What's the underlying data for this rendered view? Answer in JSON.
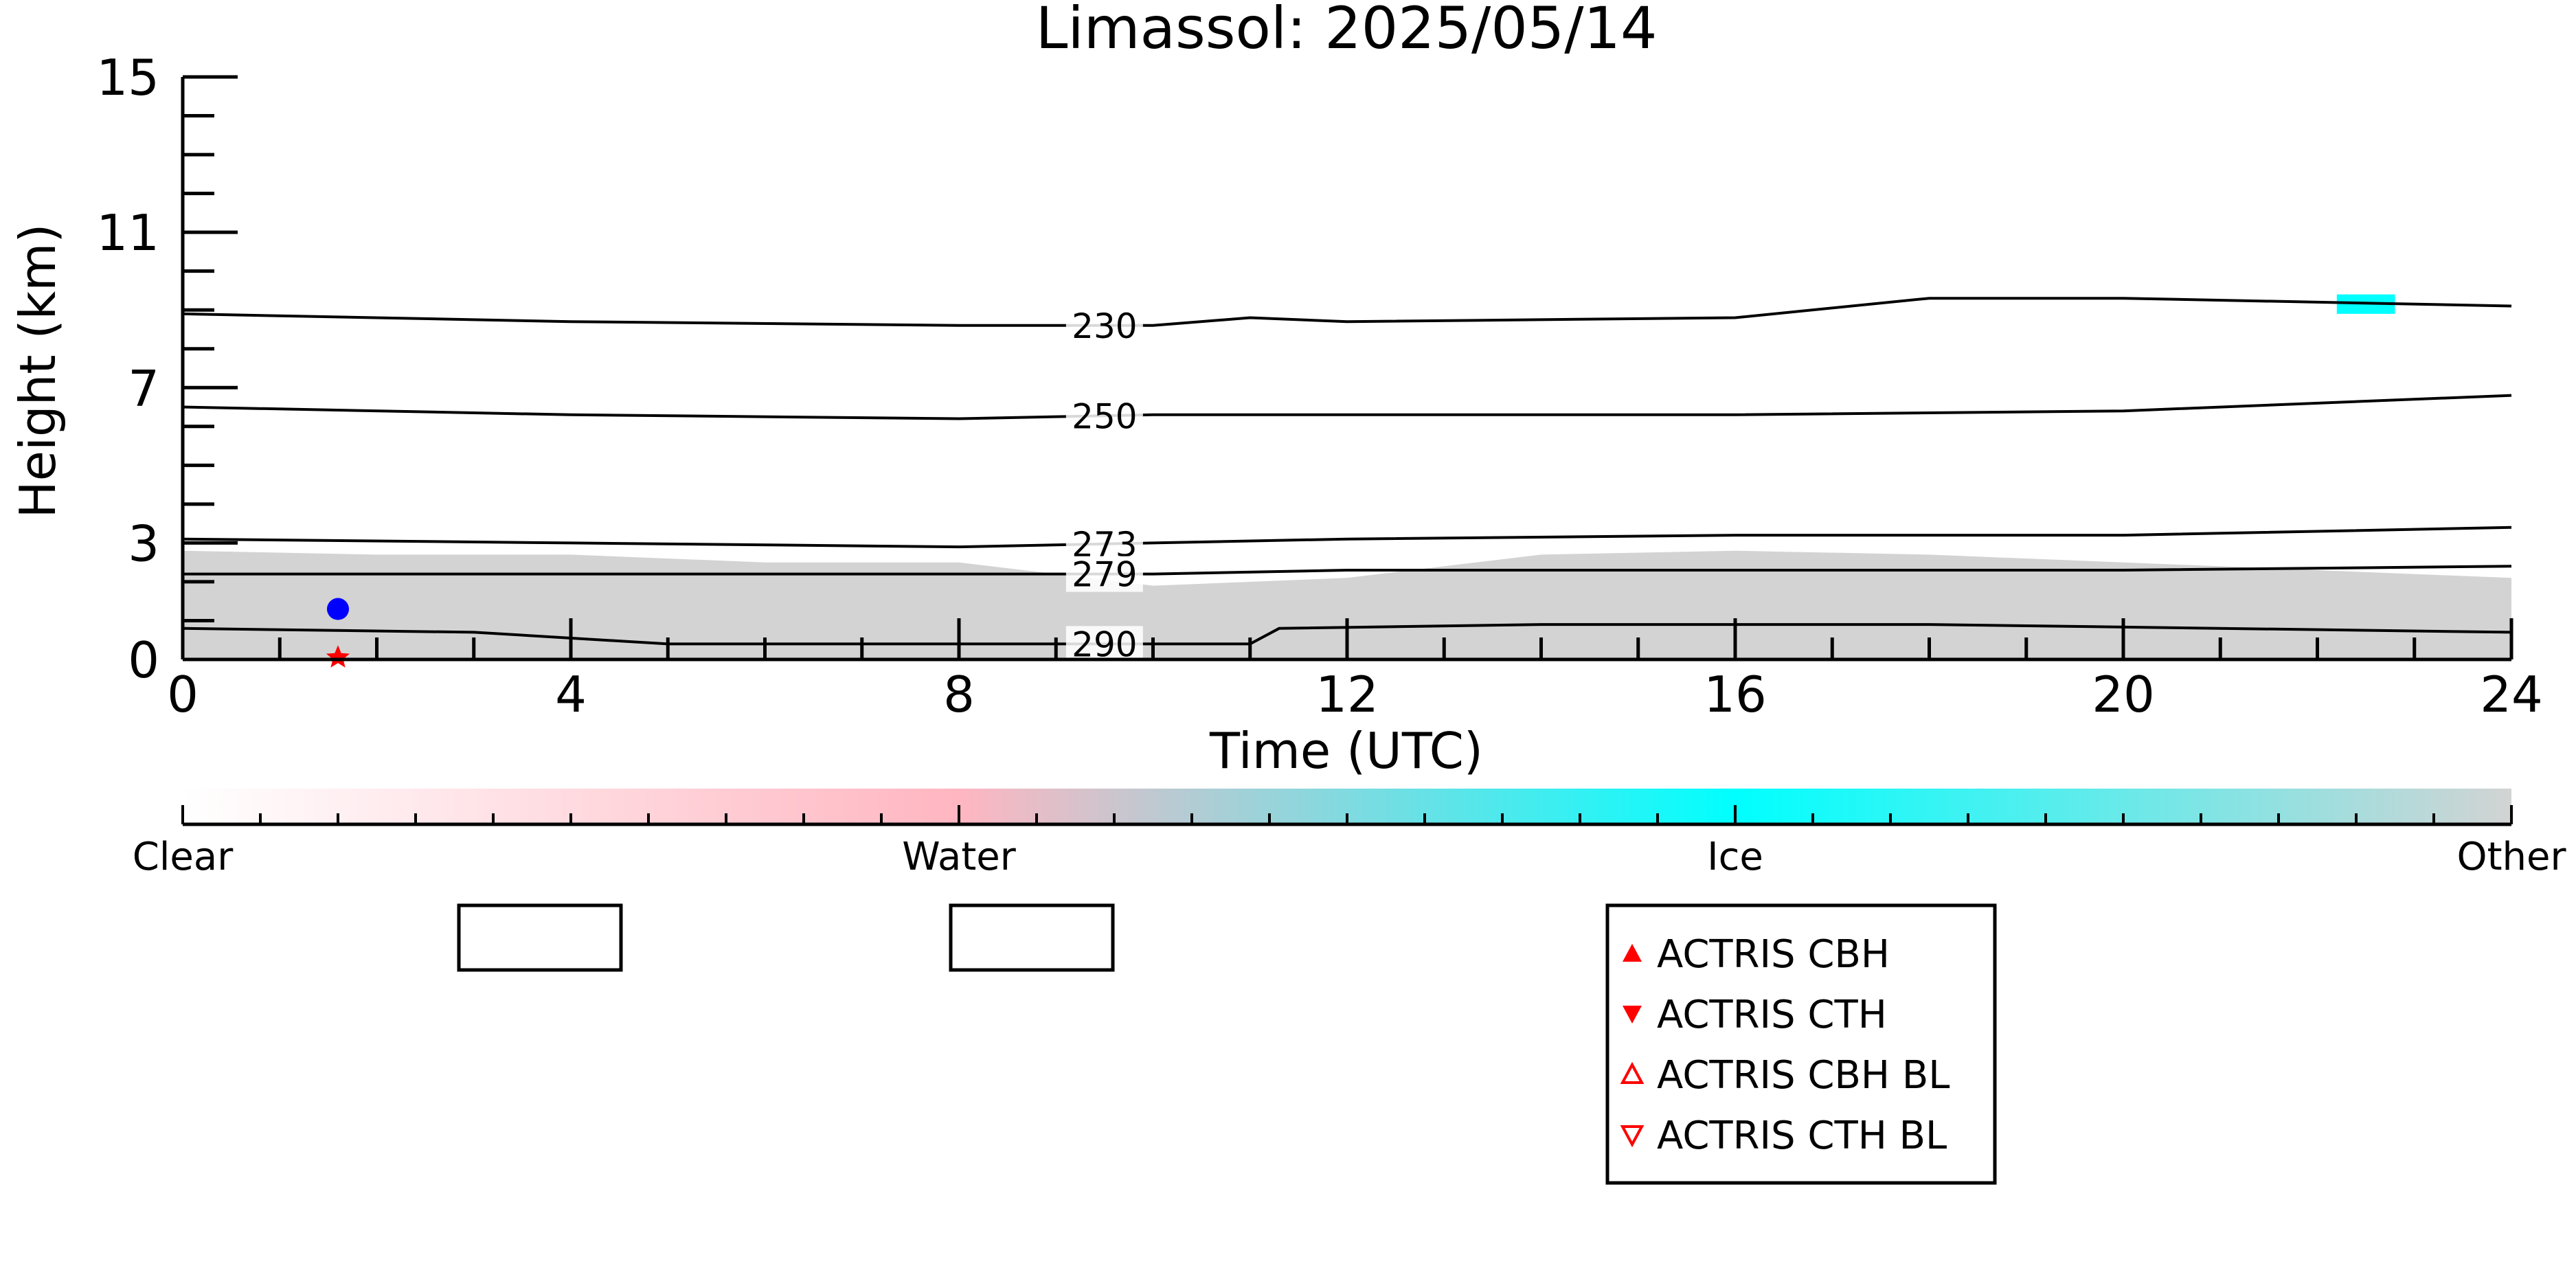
{
  "chart_data": {
    "type": "heatmap",
    "title": "Limassol: 2025/05/14",
    "xlabel": "Time (UTC)",
    "ylabel": "Height (km)",
    "xlim": [
      0,
      24
    ],
    "ylim": [
      0,
      15
    ],
    "x_ticks": [
      0,
      4,
      8,
      12,
      16,
      20,
      24
    ],
    "y_ticks": [
      0,
      3,
      7,
      11,
      15
    ],
    "colorbar": {
      "labels": [
        "Clear",
        "Water",
        "Ice",
        "Other"
      ],
      "positions": [
        0,
        1,
        2,
        3
      ],
      "colors": [
        "#ffffff",
        "#ffb6c1",
        "#00ffff",
        "#d3d3d3"
      ]
    },
    "classification_regions": [
      {
        "category": "Other",
        "color": "#d3d3d3",
        "x": [
          0,
          2,
          4,
          6,
          8,
          10,
          12,
          14,
          16,
          18,
          20,
          22,
          24
        ],
        "base": [
          0,
          0,
          0,
          0,
          0,
          0,
          0,
          0,
          0,
          0,
          0,
          0,
          0
        ],
        "top": [
          2.8,
          2.7,
          2.7,
          2.5,
          2.5,
          1.9,
          2.1,
          2.7,
          2.8,
          2.7,
          2.5,
          2.3,
          2.1
        ]
      },
      {
        "category": "Ice",
        "color": "#00ffff",
        "x": [
          22.2,
          22.8
        ],
        "base": [
          8.9,
          8.9
        ],
        "top": [
          9.4,
          9.4
        ]
      }
    ],
    "temperature_contours": [
      {
        "label": "230",
        "x": [
          0,
          4,
          8,
          10,
          11,
          12,
          16,
          18,
          20,
          24
        ],
        "y": [
          8.9,
          8.7,
          8.6,
          8.6,
          8.8,
          8.7,
          8.8,
          9.3,
          9.3,
          9.1
        ]
      },
      {
        "label": "250",
        "x": [
          0,
          4,
          8,
          10,
          12,
          16,
          20,
          24
        ],
        "y": [
          6.5,
          6.3,
          6.2,
          6.3,
          6.3,
          6.3,
          6.4,
          6.8
        ]
      },
      {
        "label": "273",
        "x": [
          0,
          4,
          8,
          10,
          12,
          16,
          20,
          24
        ],
        "y": [
          3.1,
          3.0,
          2.9,
          3.0,
          3.1,
          3.2,
          3.2,
          3.4
        ]
      },
      {
        "label": "279",
        "x": [
          0,
          4,
          8,
          10,
          12,
          16,
          20,
          24
        ],
        "y": [
          2.2,
          2.2,
          2.2,
          2.2,
          2.3,
          2.3,
          2.3,
          2.4
        ]
      },
      {
        "label": "290",
        "x": [
          0,
          3,
          5,
          8,
          10,
          11,
          11.3,
          14,
          18,
          24
        ],
        "y": [
          0.8,
          0.7,
          0.4,
          0.4,
          0.4,
          0.4,
          0.8,
          0.9,
          0.9,
          0.7
        ]
      }
    ],
    "markers": [
      {
        "name": "blue-marker",
        "x": 1.6,
        "y": 1.3,
        "color": "#0000ff",
        "shape": "circle"
      },
      {
        "name": "red-star-marker",
        "x": 1.6,
        "y": 0.05,
        "color": "#ff0000",
        "shape": "star"
      }
    ],
    "legend": {
      "placement": "bottom",
      "entries": [
        {
          "label": "ACTRIS CBH",
          "marker": "triangle-up",
          "filled": true,
          "color": "#ff0000"
        },
        {
          "label": "ACTRIS CTH",
          "marker": "triangle-down",
          "filled": true,
          "color": "#ff0000"
        },
        {
          "label": "ACTRIS CBH BL",
          "marker": "triangle-up",
          "filled": false,
          "color": "#ff0000"
        },
        {
          "label": "ACTRIS CTH BL",
          "marker": "triangle-down",
          "filled": false,
          "color": "#ff0000"
        }
      ]
    }
  }
}
